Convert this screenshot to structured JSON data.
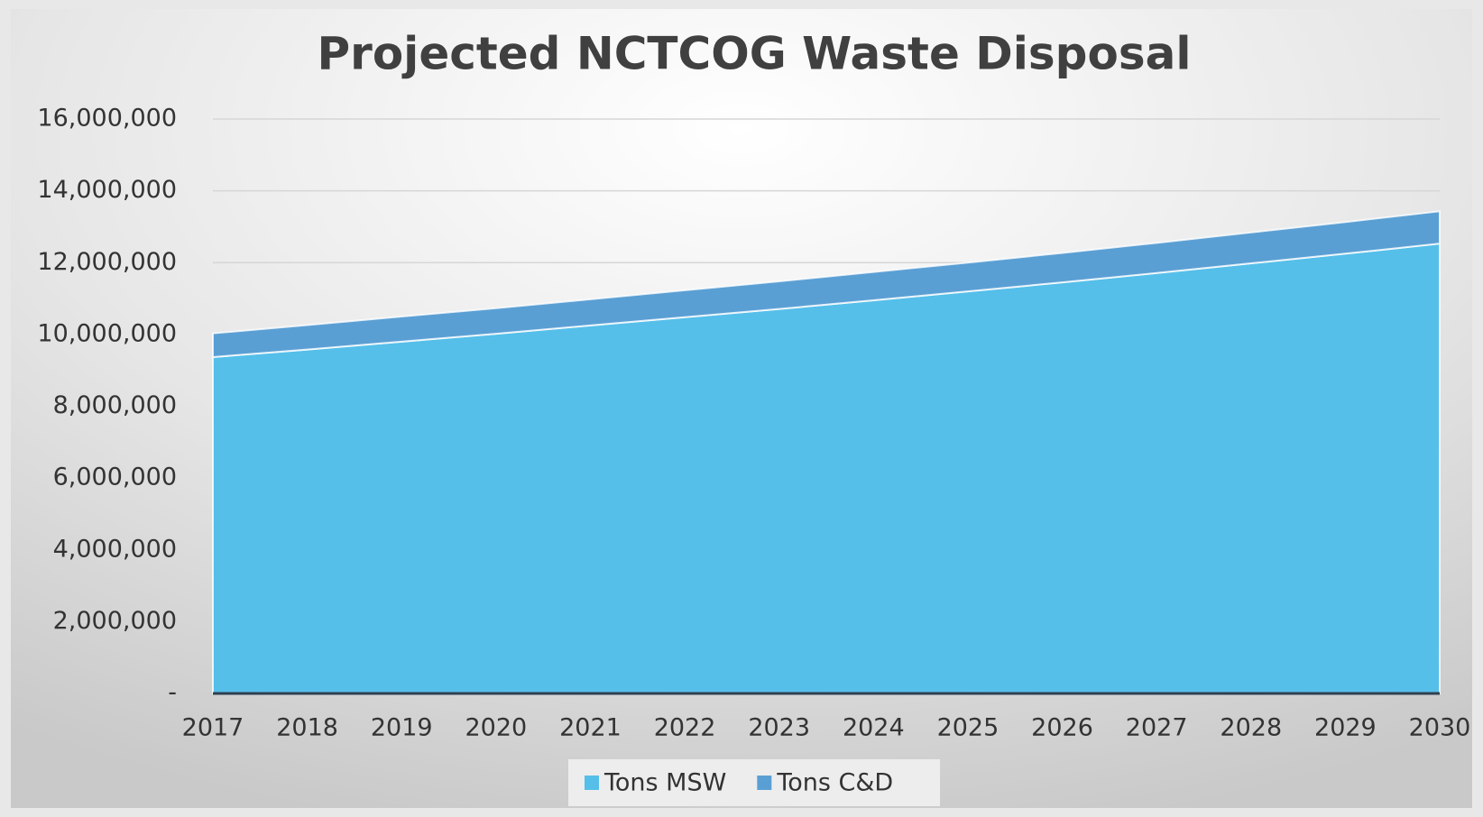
{
  "chart_data": {
    "type": "stacked_area",
    "title": "Projected NCTCOG Waste Disposal",
    "categories": [
      "2017",
      "2018",
      "2019",
      "2020",
      "2021",
      "2022",
      "2023",
      "2024",
      "2025",
      "2026",
      "2027",
      "2028",
      "2029",
      "2030"
    ],
    "series": [
      {
        "name": "Tons MSW",
        "color": "#55bfea",
        "values": [
          9370000,
          9580000,
          9800000,
          10020000,
          10250000,
          10480000,
          10710000,
          10950000,
          11200000,
          11450000,
          11710000,
          11980000,
          12250000,
          12530000
        ]
      },
      {
        "name": "Tons C&D",
        "color": "#5a9fd4",
        "values": [
          660000,
          680000,
          700000,
          710000,
          730000,
          750000,
          770000,
          790000,
          800000,
          820000,
          840000,
          860000,
          880000,
          900000
        ]
      }
    ],
    "ylim": [
      0,
      16000000
    ],
    "yticks": [
      {
        "value": 0,
        "label": "-"
      },
      {
        "value": 2000000,
        "label": "2,000,000"
      },
      {
        "value": 4000000,
        "label": "4,000,000"
      },
      {
        "value": 6000000,
        "label": "6,000,000"
      },
      {
        "value": 8000000,
        "label": "8,000,000"
      },
      {
        "value": 10000000,
        "label": "10,000,000"
      },
      {
        "value": 12000000,
        "label": "12,000,000"
      },
      {
        "value": 14000000,
        "label": "14,000,000"
      },
      {
        "value": 16000000,
        "label": "16,000,000"
      }
    ],
    "grid": true,
    "legend": "bottom"
  }
}
